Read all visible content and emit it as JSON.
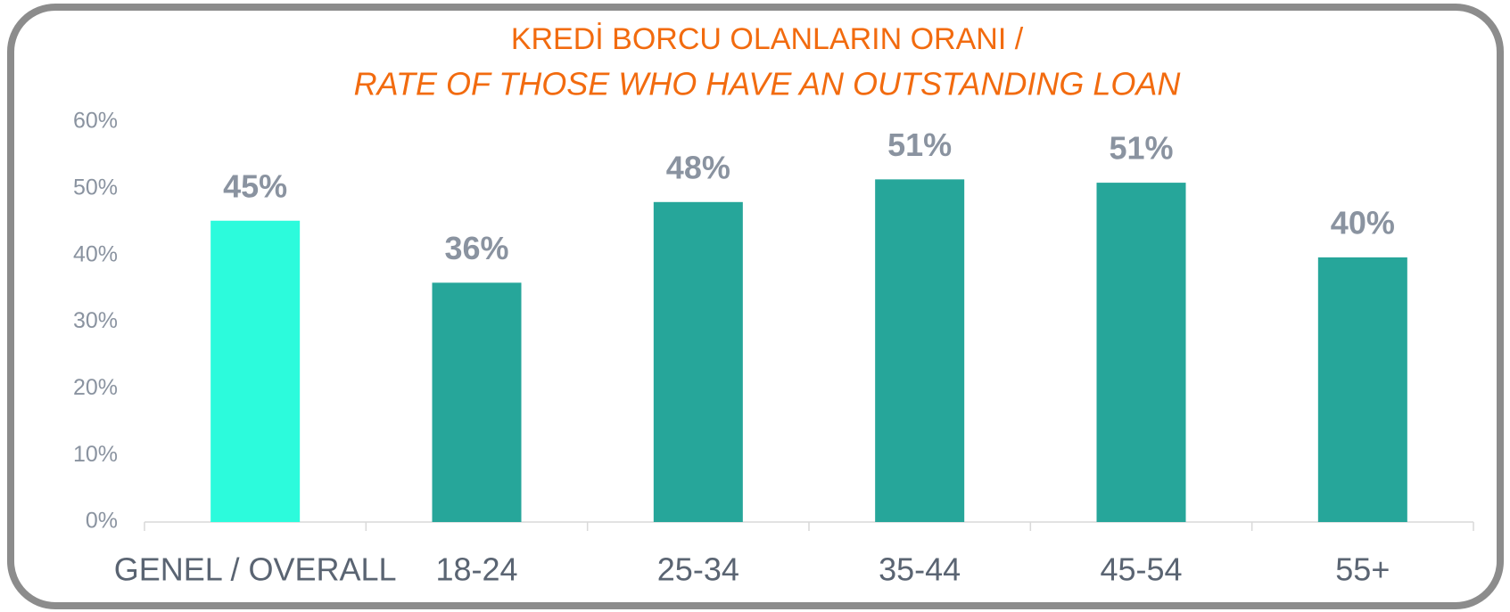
{
  "chart_data": {
    "type": "bar",
    "title": "KREDİ BORCU OLANLARIN ORANI  /",
    "subtitle": "RATE OF THOSE WHO HAVE AN OUTSTANDING LOAN",
    "categories": [
      "GENEL / OVERALL",
      "18-24",
      "25-34",
      "35-44",
      "45-54",
      "55+"
    ],
    "values": [
      45.2,
      35.9,
      48.0,
      51.4,
      50.9,
      39.7
    ],
    "value_labels": [
      "45%",
      "36%",
      "48%",
      "51%",
      "51%",
      "40%"
    ],
    "colors": [
      "#2cfbdc",
      "#26a69a",
      "#26a69a",
      "#26a69a",
      "#26a69a",
      "#26a69a"
    ],
    "ylim": [
      0,
      60
    ],
    "yticks": [
      {
        "value": 0,
        "label": "0%"
      },
      {
        "value": 10,
        "label": "10%"
      },
      {
        "value": 20,
        "label": "20%"
      },
      {
        "value": 30,
        "label": "30%"
      },
      {
        "value": 40,
        "label": "40%"
      },
      {
        "value": 50,
        "label": "50%"
      },
      {
        "value": 60,
        "label": "60%"
      }
    ],
    "grid": false
  }
}
